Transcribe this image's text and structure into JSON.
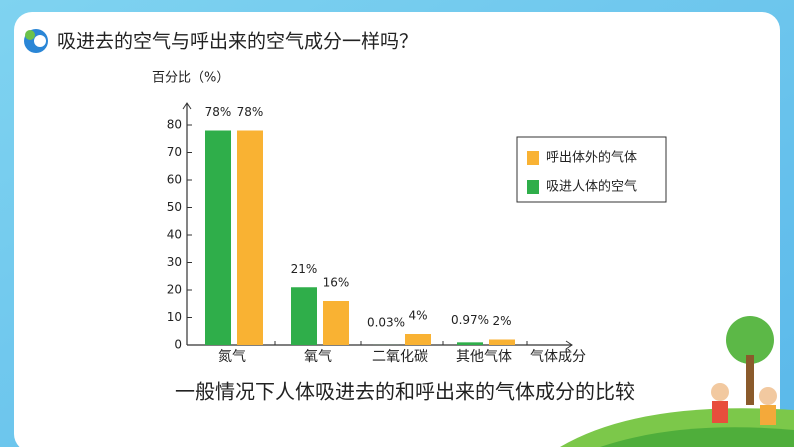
{
  "chart_data": {
    "type": "bar",
    "title": "吸进去的空气与呼出来的空气成分一样吗？",
    "caption": "一般情况下人体吸进去的和呼出来的气体成分的比较",
    "y_label": "百分比（%）",
    "x_label": "气体成分",
    "categories": [
      "氮气",
      "氧气",
      "二氧化碳",
      "其他气体"
    ],
    "series": [
      {
        "name": "呼出体外的气体",
        "color": "#f9b233",
        "values": [
          78,
          16,
          4,
          2
        ],
        "value_labels": [
          "78%",
          "16%",
          "4%",
          "2%"
        ]
      },
      {
        "name": "吸进人体的空气",
        "color": "#2fae4a",
        "values": [
          78,
          21,
          0.03,
          0.97
        ],
        "value_labels": [
          "78%",
          "21%",
          "0.03%",
          "0.97%"
        ]
      }
    ],
    "ylim": [
      0,
      88
    ],
    "yticks": [
      0,
      10,
      20,
      30,
      40,
      50,
      60,
      70,
      80
    ],
    "legend": "upper right"
  }
}
